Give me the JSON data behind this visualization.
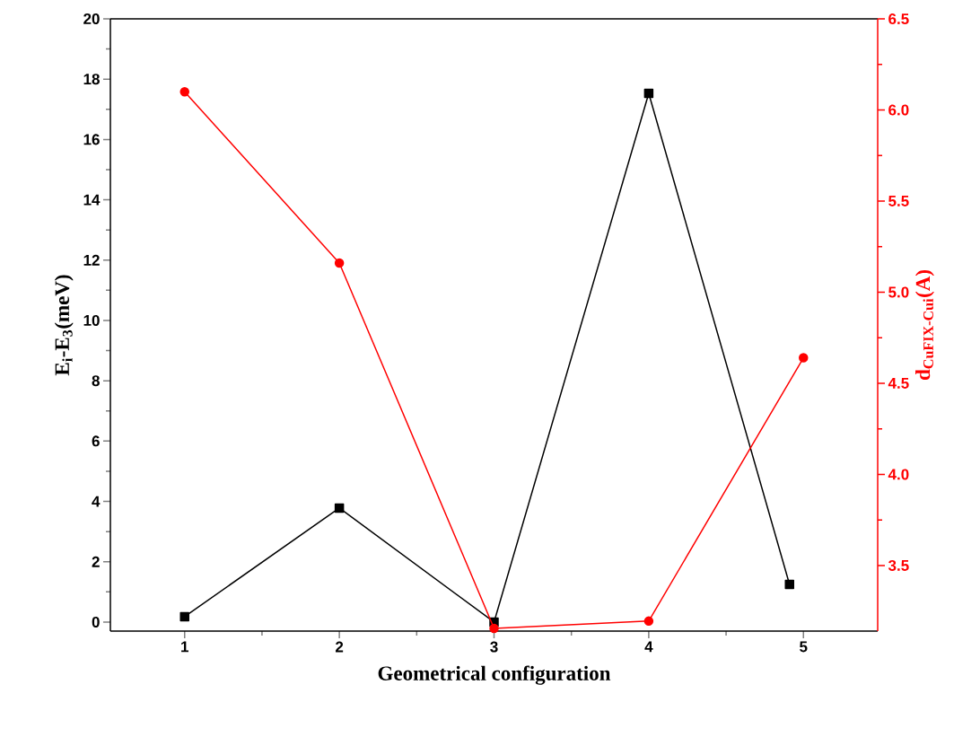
{
  "chart_data": {
    "type": "line",
    "xlabel": "Geometrical configuration",
    "ylabel": "E$_{i}$-E$_{3}$(meV)",
    "y2label": "d$_{CuFIX-Cui}$(A)",
    "xlim": [
      0.52,
      5.48
    ],
    "xticks": [
      1,
      2,
      3,
      4,
      5
    ],
    "ylim": [
      -0.3,
      20
    ],
    "yticks": [
      0,
      2,
      4,
      6,
      8,
      10,
      12,
      14,
      16,
      18,
      20
    ],
    "y2lim": [
      3.14,
      6.5
    ],
    "y2ticks": [
      {
        "value": 3.5,
        "label": "3.5"
      },
      {
        "value": 4.0,
        "label": "4.0"
      },
      {
        "value": 4.5,
        "label": "4.5"
      },
      {
        "value": 5.0,
        "label": "5.0"
      },
      {
        "value": 5.5,
        "label": "5.5"
      },
      {
        "value": 6.0,
        "label": "6.0"
      },
      {
        "value": 6.5,
        "label": "6.5"
      }
    ],
    "series": [
      {
        "color": "#000000",
        "marker": "square",
        "x": [
          1,
          2,
          3,
          4,
          4.91
        ],
        "values": [
          0.18,
          3.78,
          0,
          17.53,
          1.25
        ]
      },
      {
        "color": "#ff0000",
        "marker": "circle",
        "axis": "y2",
        "x": [
          1,
          2,
          3,
          4,
          5
        ],
        "values": [
          6.1,
          5.16,
          3.155,
          3.195,
          4.64
        ]
      }
    ]
  }
}
